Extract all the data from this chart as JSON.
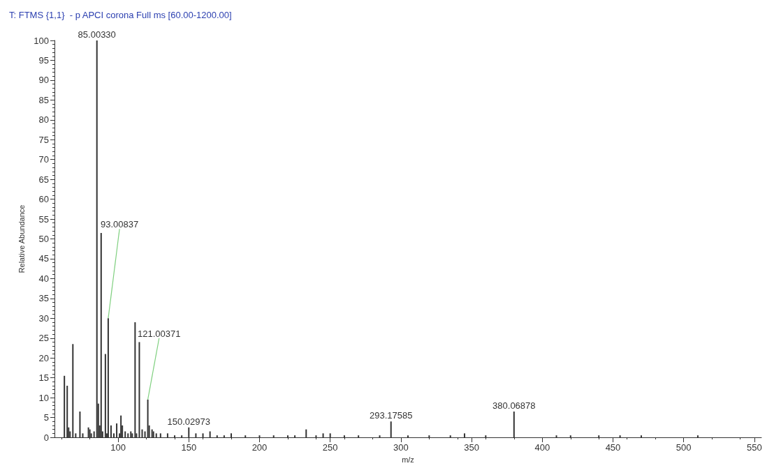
{
  "chart_data": {
    "type": "bar",
    "title": "T: FTMS {1,1}  - p APCI corona Full ms [60.00-1200.00]",
    "xlabel": "m/z",
    "ylabel": "Relative Abundance",
    "x": [
      62,
      64,
      65,
      66,
      68,
      70,
      73,
      75,
      79,
      80,
      81,
      83,
      85,
      86,
      87,
      88,
      89,
      91,
      92,
      93,
      95,
      97,
      99,
      101,
      102,
      103,
      105,
      107,
      109,
      110,
      112,
      113,
      115,
      117,
      119,
      121,
      122,
      124,
      125,
      127,
      130,
      135,
      140,
      145,
      150,
      155,
      160,
      165,
      170,
      175,
      180,
      190,
      200,
      210,
      220,
      225,
      233,
      240,
      245,
      250,
      260,
      270,
      285,
      293,
      305,
      320,
      335,
      345,
      360,
      380,
      410,
      420,
      440,
      455,
      470,
      510
    ],
    "values": [
      15.5,
      13,
      2.5,
      1.5,
      23.5,
      1,
      6.5,
      1,
      2.5,
      2,
      1,
      1.5,
      100,
      8.5,
      3,
      51.5,
      1.5,
      21,
      1,
      30,
      3,
      1,
      3.5,
      1,
      5.5,
      3,
      1.5,
      1,
      1.5,
      1,
      29,
      1,
      24,
      2,
      1.5,
      9.5,
      3,
      2,
      1.5,
      1,
      1,
      1,
      0.5,
      0.5,
      2.5,
      1,
      1,
      1.5,
      0.5,
      0.5,
      1,
      0.5,
      0.5,
      0.5,
      0.5,
      0.5,
      2,
      0.5,
      1,
      1,
      0.5,
      0.5,
      0.5,
      4,
      0.5,
      0.5,
      0.5,
      1,
      0.5,
      6.5,
      0.5,
      0.5,
      0.5,
      0.5,
      0.5,
      0.5
    ],
    "color": "#333333",
    "xlim": [
      55,
      555
    ],
    "xticks": [
      100,
      150,
      200,
      250,
      300,
      350,
      400,
      450,
      500,
      550
    ],
    "ylim": [
      0,
      100
    ],
    "yticks": [
      0,
      5,
      10,
      15,
      20,
      25,
      30,
      35,
      40,
      45,
      50,
      55,
      60,
      65,
      70,
      75,
      80,
      85,
      90,
      95,
      100
    ],
    "annotations": [
      {
        "text": "85.00330",
        "x": 85,
        "y": 100
      },
      {
        "text": "93.00837",
        "x": 93,
        "y": 30
      },
      {
        "text": "121.00371",
        "x": 121,
        "y": 9.5
      },
      {
        "text": "150.02973",
        "x": 150,
        "y": 2.5
      },
      {
        "text": "293.17585",
        "x": 293,
        "y": 4
      },
      {
        "text": "380.06878",
        "x": 380,
        "y": 6.5
      }
    ],
    "grid": false
  }
}
